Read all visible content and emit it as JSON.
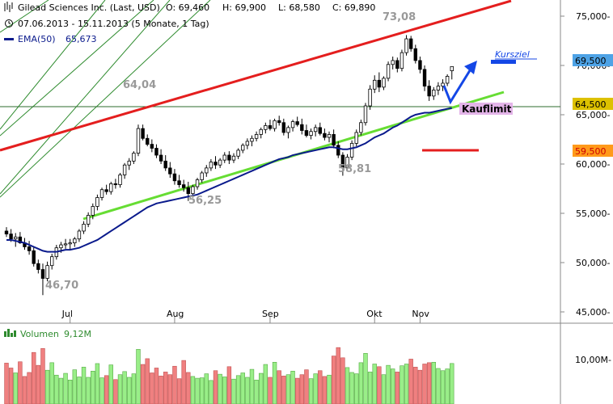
{
  "header": {
    "title": "Gilead Sciences Inc. (Last, USD)",
    "open": "O: 69,460",
    "high": "H: 69,900",
    "low": "L: 68,580",
    "close": "C: 69,890",
    "range": "07.06.2013 - 15.11.2013 (5 Monate, 1 Tag)",
    "ema": "EMA(50)",
    "ema_value": "65,673",
    "volume_label": "Volumen",
    "volume_value": "9,12M"
  },
  "colors": {
    "up": "#ffffff",
    "down": "#000000",
    "ema": "#0a1a8c",
    "resistance": "#e41e1e",
    "support": "#66dd33",
    "channel": "#2e8b2e",
    "target": "#1447e6",
    "vol_up": "#99ee88",
    "vol_down": "#f08080"
  },
  "chart_data": [
    {
      "type": "candlestick",
      "title": "",
      "x_ticks": [
        "Jul",
        "Aug",
        "Sep",
        "Okt",
        "Nov"
      ],
      "y_ticks": [
        "75,000-",
        "70,000-",
        "65,000-",
        "60,000-",
        "55,000-",
        "50,000-",
        "45,000-"
      ],
      "ylim": [
        45,
        77
      ],
      "grid": false,
      "ohlc": [
        [
          53.2,
          53.6,
          52.6,
          52.9
        ],
        [
          52.9,
          53.4,
          52.1,
          52.4
        ],
        [
          52.4,
          53.0,
          51.6,
          52.6
        ],
        [
          52.6,
          53.1,
          51.9,
          52.0
        ],
        [
          52.0,
          52.5,
          51.3,
          51.6
        ],
        [
          51.6,
          52.2,
          50.8,
          51.2
        ],
        [
          51.2,
          51.6,
          49.6,
          49.9
        ],
        [
          49.9,
          50.3,
          48.9,
          49.3
        ],
        [
          49.3,
          49.9,
          46.7,
          48.4
        ],
        [
          48.4,
          50.1,
          48.1,
          49.7
        ],
        [
          49.7,
          50.9,
          49.3,
          50.6
        ],
        [
          50.6,
          51.8,
          50.3,
          51.5
        ],
        [
          51.5,
          52.1,
          51.0,
          51.8
        ],
        [
          51.8,
          52.4,
          51.4,
          51.9
        ],
        [
          51.9,
          52.4,
          51.3,
          52.0
        ],
        [
          52.0,
          52.6,
          51.6,
          52.4
        ],
        [
          52.4,
          53.4,
          52.1,
          53.2
        ],
        [
          53.2,
          54.2,
          52.9,
          53.9
        ],
        [
          53.9,
          55.1,
          53.6,
          54.8
        ],
        [
          54.8,
          56.0,
          54.4,
          55.7
        ],
        [
          55.7,
          56.9,
          55.3,
          56.6
        ],
        [
          56.6,
          57.6,
          56.3,
          57.4
        ],
        [
          57.4,
          57.9,
          56.9,
          57.2
        ],
        [
          57.2,
          58.2,
          56.9,
          58.0
        ],
        [
          58.0,
          58.5,
          57.5,
          57.9
        ],
        [
          57.9,
          59.1,
          57.6,
          58.9
        ],
        [
          58.9,
          60.1,
          58.5,
          59.9
        ],
        [
          59.9,
          60.6,
          59.4,
          60.3
        ],
        [
          60.3,
          61.3,
          60.0,
          61.1
        ],
        [
          61.1,
          64.0,
          60.8,
          63.6
        ],
        [
          63.6,
          64.0,
          62.4,
          62.6
        ],
        [
          62.6,
          63.0,
          61.8,
          62.0
        ],
        [
          62.0,
          62.5,
          61.2,
          61.6
        ],
        [
          61.6,
          62.0,
          60.6,
          60.9
        ],
        [
          60.9,
          61.5,
          60.0,
          60.3
        ],
        [
          60.3,
          60.9,
          59.3,
          59.6
        ],
        [
          59.6,
          60.2,
          58.6,
          59.0
        ],
        [
          59.0,
          59.5,
          57.9,
          58.3
        ],
        [
          58.3,
          58.9,
          57.6,
          57.9
        ],
        [
          57.9,
          58.4,
          57.2,
          57.6
        ],
        [
          57.6,
          58.2,
          56.25,
          57.0
        ],
        [
          57.0,
          57.9,
          56.6,
          57.7
        ],
        [
          57.7,
          58.6,
          57.4,
          58.4
        ],
        [
          58.4,
          59.3,
          58.1,
          59.1
        ],
        [
          59.1,
          59.9,
          58.7,
          59.6
        ],
        [
          59.6,
          60.5,
          59.3,
          60.2
        ],
        [
          60.2,
          60.8,
          59.5,
          59.9
        ],
        [
          59.9,
          60.6,
          59.6,
          60.4
        ],
        [
          60.4,
          61.2,
          60.1,
          60.9
        ],
        [
          60.9,
          61.3,
          60.0,
          60.4
        ],
        [
          60.4,
          61.1,
          60.1,
          60.8
        ],
        [
          60.8,
          61.6,
          60.5,
          61.4
        ],
        [
          61.4,
          62.1,
          61.1,
          61.9
        ],
        [
          61.9,
          62.6,
          61.5,
          62.3
        ],
        [
          62.3,
          62.9,
          61.8,
          62.6
        ],
        [
          62.6,
          63.3,
          62.3,
          63.0
        ],
        [
          63.0,
          63.7,
          62.6,
          63.5
        ],
        [
          63.5,
          64.2,
          63.1,
          63.9
        ],
        [
          63.9,
          64.5,
          63.4,
          63.6
        ],
        [
          63.6,
          64.6,
          63.3,
          64.4
        ],
        [
          64.4,
          64.9,
          63.9,
          64.2
        ],
        [
          64.2,
          64.6,
          62.9,
          63.2
        ],
        [
          63.2,
          63.9,
          62.6,
          63.7
        ],
        [
          63.7,
          64.5,
          63.3,
          64.3
        ],
        [
          64.3,
          64.8,
          63.8,
          64.0
        ],
        [
          64.0,
          64.6,
          63.0,
          63.4
        ],
        [
          63.4,
          64.0,
          62.7,
          62.9
        ],
        [
          62.9,
          63.6,
          62.5,
          63.3
        ],
        [
          63.3,
          64.0,
          62.8,
          63.7
        ],
        [
          63.7,
          64.2,
          62.9,
          63.1
        ],
        [
          63.1,
          63.6,
          62.4,
          62.7
        ],
        [
          62.7,
          63.3,
          62.2,
          63.0
        ],
        [
          63.0,
          63.5,
          61.6,
          61.9
        ],
        [
          61.9,
          62.3,
          60.6,
          60.9
        ],
        [
          60.9,
          61.2,
          58.81,
          59.6
        ],
        [
          59.6,
          61.0,
          59.3,
          60.7
        ],
        [
          60.7,
          62.4,
          60.4,
          62.1
        ],
        [
          62.1,
          63.5,
          61.8,
          63.2
        ],
        [
          63.2,
          64.5,
          62.9,
          64.2
        ],
        [
          64.2,
          66.2,
          63.9,
          65.9
        ],
        [
          65.9,
          68.0,
          65.5,
          67.6
        ],
        [
          67.6,
          69.0,
          67.2,
          68.5
        ],
        [
          68.5,
          69.3,
          67.3,
          67.8
        ],
        [
          67.8,
          68.9,
          67.5,
          68.7
        ],
        [
          68.7,
          70.4,
          68.4,
          70.1
        ],
        [
          70.1,
          70.9,
          69.6,
          70.5
        ],
        [
          70.5,
          70.8,
          69.3,
          69.7
        ],
        [
          69.7,
          71.6,
          69.4,
          71.3
        ],
        [
          71.3,
          73.08,
          71.0,
          72.7
        ],
        [
          72.7,
          73.0,
          71.4,
          71.7
        ],
        [
          71.7,
          72.1,
          70.2,
          70.5
        ],
        [
          70.5,
          70.9,
          69.2,
          69.6
        ],
        [
          69.6,
          70.0,
          67.4,
          67.9
        ],
        [
          67.9,
          68.5,
          66.4,
          66.9
        ],
        [
          66.9,
          67.8,
          66.5,
          67.5
        ],
        [
          67.5,
          68.3,
          67.0,
          67.9
        ],
        [
          67.9,
          68.6,
          67.4,
          68.2
        ],
        [
          68.2,
          69.1,
          67.9,
          68.9
        ],
        [
          69.46,
          69.9,
          68.58,
          69.89
        ]
      ],
      "volume": [
        9.2,
        8.1,
        7.0,
        9.5,
        6.2,
        7.1,
        11.6,
        8.7,
        12.5,
        7.6,
        9.3,
        6.5,
        5.8,
        6.9,
        5.4,
        7.7,
        6.1,
        8.3,
        6.0,
        7.4,
        9.1,
        5.9,
        6.4,
        8.8,
        5.5,
        6.6,
        7.3,
        6.0,
        6.8,
        12.3,
        8.9,
        10.2,
        7.0,
        8.1,
        6.3,
        7.2,
        6.6,
        8.5,
        5.7,
        9.8,
        7.1,
        6.2,
        5.8,
        5.9,
        6.8,
        5.3,
        7.5,
        6.7,
        6.1,
        8.4,
        5.6,
        6.4,
        7.0,
        6.0,
        7.8,
        5.4,
        6.9,
        8.9,
        6.0,
        9.4,
        7.5,
        6.3,
        6.6,
        7.4,
        5.8,
        6.6,
        7.7,
        5.7,
        6.8,
        7.5,
        6.2,
        6.5,
        10.8,
        12.7,
        10.4,
        8.2,
        7.1,
        6.8,
        9.3,
        11.4,
        7.2,
        9.0,
        8.4,
        6.6,
        8.7,
        7.9,
        7.2,
        8.6,
        9.0,
        10.1,
        8.3,
        7.6,
        9.0,
        9.3,
        9.4,
        8.0,
        7.5,
        7.9,
        9.12
      ],
      "ema50": [
        52.3,
        52.3,
        52.2,
        52.1,
        52.0,
        51.8,
        51.6,
        51.4,
        51.2,
        51.1,
        51.1,
        51.1,
        51.2,
        51.3,
        51.3,
        51.4,
        51.5,
        51.7,
        51.9,
        52.1,
        52.3,
        52.6,
        52.9,
        53.2,
        53.5,
        53.8,
        54.1,
        54.4,
        54.7,
        55.0,
        55.3,
        55.6,
        55.8,
        56.0,
        56.1,
        56.2,
        56.3,
        56.4,
        56.5,
        56.6,
        56.7,
        56.8,
        56.9,
        57.1,
        57.3,
        57.5,
        57.7,
        57.9,
        58.1,
        58.3,
        58.5,
        58.7,
        58.9,
        59.1,
        59.3,
        59.5,
        59.7,
        59.9,
        60.1,
        60.3,
        60.5,
        60.6,
        60.7,
        60.9,
        61.0,
        61.1,
        61.2,
        61.3,
        61.4,
        61.5,
        61.6,
        61.7,
        61.7,
        61.6,
        61.5,
        61.5,
        61.6,
        61.7,
        61.9,
        62.1,
        62.4,
        62.7,
        62.9,
        63.1,
        63.4,
        63.7,
        63.9,
        64.2,
        64.5,
        64.8,
        65.0,
        65.1,
        65.2,
        65.2,
        65.3,
        65.4,
        65.5,
        65.6,
        65.673
      ]
    }
  ],
  "annotations": {
    "price_labels": [
      "46,70",
      "64,04",
      "56,25",
      "58,81",
      "73,08"
    ],
    "kursziel": "Kursziel",
    "kauflimit": "Kauflimit",
    "tag_target": "69,500",
    "tag_current": "64,500",
    "tag_stop": "59,500",
    "vol_axis_label": "10,00M-"
  }
}
